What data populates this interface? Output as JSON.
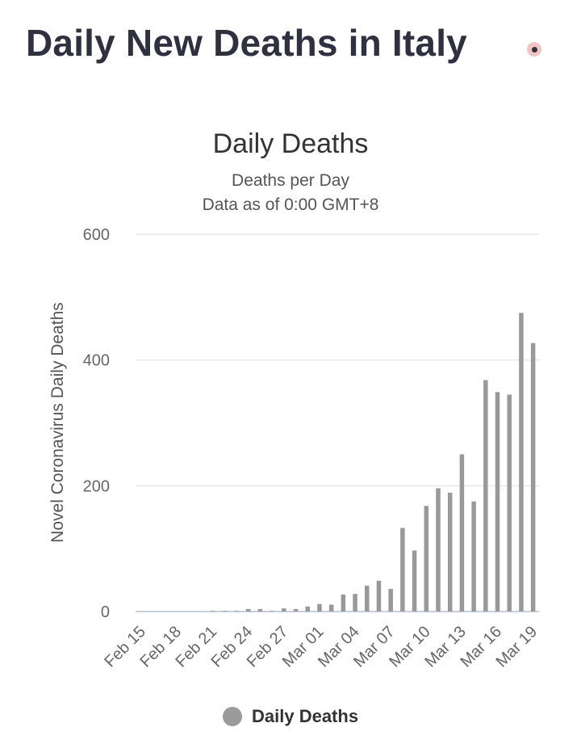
{
  "page": {
    "title": "Daily New Deaths in Italy"
  },
  "chart_data": {
    "type": "bar",
    "title": "Daily Deaths",
    "subtitle": [
      "Deaths per Day",
      "Data as of 0:00 GMT+8"
    ],
    "xlabel": "",
    "ylabel": "Novel Coronavirus Daily Deaths",
    "ylim": [
      0,
      600
    ],
    "yticks": [
      0,
      200,
      400,
      600
    ],
    "xticks": [
      "Feb 15",
      "Feb 18",
      "Feb 21",
      "Feb 24",
      "Feb 27",
      "Mar 01",
      "Mar 04",
      "Mar 07",
      "Mar 10",
      "Mar 13",
      "Mar 16",
      "Mar 19"
    ],
    "grid": true,
    "legend_position": "bottom",
    "bar_color": "#999999",
    "categories": [
      "Feb 15",
      "Feb 16",
      "Feb 17",
      "Feb 18",
      "Feb 19",
      "Feb 20",
      "Feb 21",
      "Feb 22",
      "Feb 23",
      "Feb 24",
      "Feb 25",
      "Feb 26",
      "Feb 27",
      "Feb 28",
      "Feb 29",
      "Mar 01",
      "Mar 02",
      "Mar 03",
      "Mar 04",
      "Mar 05",
      "Mar 06",
      "Mar 07",
      "Mar 08",
      "Mar 09",
      "Mar 10",
      "Mar 11",
      "Mar 12",
      "Mar 13",
      "Mar 14",
      "Mar 15",
      "Mar 16",
      "Mar 17",
      "Mar 18",
      "Mar 19"
    ],
    "series": [
      {
        "name": "Daily Deaths",
        "values": [
          0,
          0,
          0,
          0,
          0,
          0,
          1,
          1,
          1,
          4,
          4,
          1,
          5,
          4,
          8,
          12,
          11,
          27,
          28,
          41,
          49,
          36,
          133,
          97,
          168,
          196,
          189,
          250,
          175,
          368,
          349,
          345,
          475,
          427
        ]
      }
    ]
  }
}
